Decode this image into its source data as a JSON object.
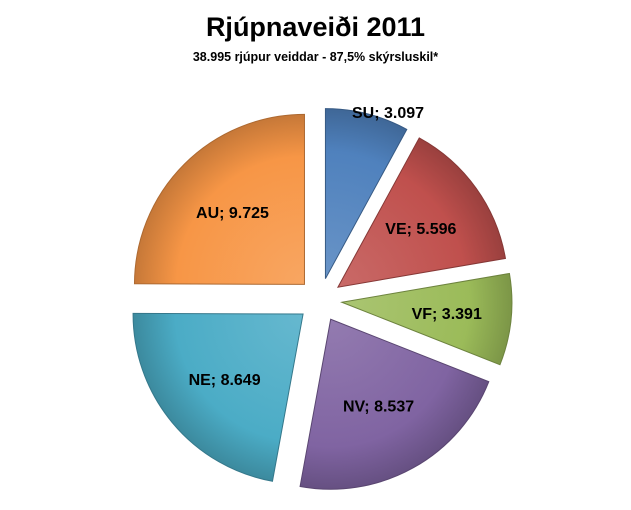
{
  "chart_data": {
    "type": "pie",
    "title": "Rjúpnaveiði 2011",
    "subtitle": "38.995 rjúpur veiddar - 87,5% skýrsluskil*",
    "slices": [
      {
        "name": "SU",
        "value": 3097,
        "label": "SU; 3.097",
        "color": "#4F81BD"
      },
      {
        "name": "VE",
        "value": 5596,
        "label": "VE; 5.596",
        "color": "#C0504D"
      },
      {
        "name": "VF",
        "value": 3391,
        "label": "VF; 3.391",
        "color": "#9BBB59"
      },
      {
        "name": "NV",
        "value": 8537,
        "label": "NV; 8.537",
        "color": "#8064A2"
      },
      {
        "name": "NE",
        "value": 8649,
        "label": "NE; 8.649",
        "color": "#4BACC6"
      },
      {
        "name": "AU",
        "value": 9725,
        "label": "AU; 9.725",
        "color": "#F79646"
      }
    ],
    "exploded": true,
    "legend": "none"
  }
}
